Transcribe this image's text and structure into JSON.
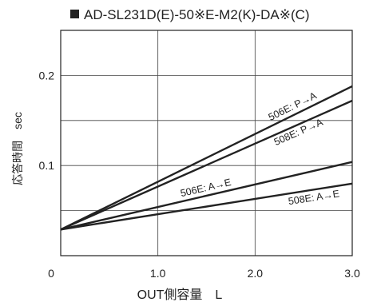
{
  "chart_data": {
    "type": "line",
    "title": "AD-SL231D(E)-50※E-M2(K)-DA※(C)",
    "xlabel": "OUT側容量　L",
    "ylabel": "応答時間　sec",
    "xlim": [
      0,
      3.0
    ],
    "ylim": [
      0,
      0.25
    ],
    "x_ticks": [
      "0",
      "1.0",
      "2.0",
      "3.0"
    ],
    "y_ticks": [
      "0.1",
      "0.2"
    ],
    "grid": true,
    "series": [
      {
        "name": "506E: P→A",
        "x": [
          0,
          3.0
        ],
        "y": [
          0.029,
          0.188
        ]
      },
      {
        "name": "508E: P→A",
        "x": [
          0,
          3.0
        ],
        "y": [
          0.029,
          0.172
        ]
      },
      {
        "name": "506E: A→E",
        "x": [
          0,
          3.0
        ],
        "y": [
          0.029,
          0.104
        ]
      },
      {
        "name": "508E: A→E",
        "x": [
          0,
          3.0
        ],
        "y": [
          0.029,
          0.08
        ]
      }
    ]
  }
}
